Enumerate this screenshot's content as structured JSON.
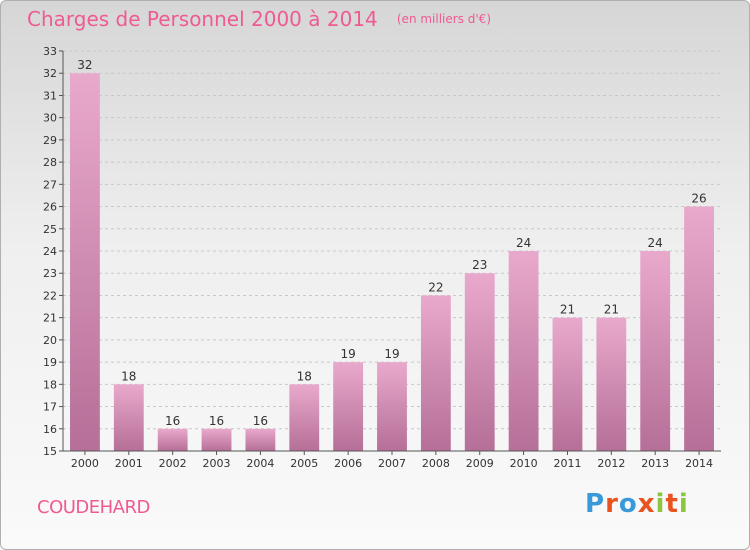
{
  "header": {
    "title": "Charges de Personnel 2000 à 2014",
    "subtitle": "(en milliers d'€)"
  },
  "footer": {
    "place_name": "COUDEHARD",
    "logo_text": "Proxiti",
    "logo_colors": [
      "#3a9ad9",
      "#e8531f",
      "#3a9ad9",
      "#e8531f",
      "#8cc63f",
      "#e8531f",
      "#8cc63f"
    ]
  },
  "colors": {
    "bar_top": "#e9a9cc",
    "bar_bottom": "#b56f98",
    "grid": "#c8c8c8",
    "axis_text": "#333333"
  },
  "chart_data": {
    "type": "bar",
    "title": "Charges de Personnel 2000 à 2014",
    "subtitle": "(en milliers d'€)",
    "categories": [
      "2000",
      "2001",
      "2002",
      "2003",
      "2004",
      "2005",
      "2006",
      "2007",
      "2008",
      "2009",
      "2010",
      "2011",
      "2012",
      "2013",
      "2014"
    ],
    "values": [
      32,
      18,
      16,
      16,
      16,
      18,
      19,
      19,
      22,
      23,
      24,
      21,
      21,
      24,
      26
    ],
    "ylim": [
      15,
      33
    ],
    "yticks": [
      15,
      16,
      17,
      18,
      19,
      20,
      21,
      22,
      23,
      24,
      25,
      26,
      27,
      28,
      29,
      30,
      31,
      32,
      33
    ],
    "grid": true,
    "data_labels": true
  }
}
